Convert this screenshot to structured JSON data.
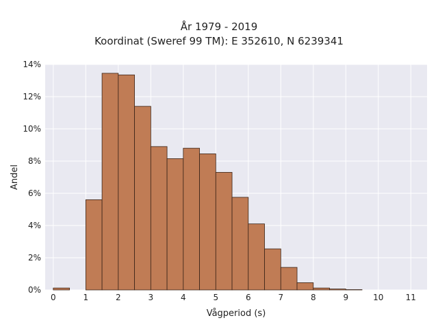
{
  "chart_data": {
    "type": "bar",
    "title_lines": [
      "År 1979 - 2019",
      "Koordinat (Sweref 99 TM): E 352610, N 6239341"
    ],
    "xlabel": "Vågperiod (s)",
    "ylabel": "Andel",
    "x_ticks": [
      "0",
      "1",
      "2",
      "3",
      "4",
      "5",
      "6",
      "7",
      "8",
      "9",
      "10",
      "11"
    ],
    "y_ticks": [
      "0%",
      "2%",
      "4%",
      "6%",
      "8%",
      "10%",
      "12%",
      "14%"
    ],
    "xlim": [
      -0.25,
      11.5
    ],
    "ylim": [
      0,
      14
    ],
    "bin_width": 0.5,
    "bins": [
      {
        "x0": 0.0,
        "value": 0.12
      },
      {
        "x0": 0.5,
        "value": 0.0
      },
      {
        "x0": 1.0,
        "value": 5.6
      },
      {
        "x0": 1.5,
        "value": 13.45
      },
      {
        "x0": 2.0,
        "value": 13.35
      },
      {
        "x0": 2.5,
        "value": 11.4
      },
      {
        "x0": 3.0,
        "value": 8.9
      },
      {
        "x0": 3.5,
        "value": 8.15
      },
      {
        "x0": 4.0,
        "value": 8.8
      },
      {
        "x0": 4.5,
        "value": 8.45
      },
      {
        "x0": 5.0,
        "value": 7.3
      },
      {
        "x0": 5.5,
        "value": 5.75
      },
      {
        "x0": 6.0,
        "value": 4.1
      },
      {
        "x0": 6.5,
        "value": 2.55
      },
      {
        "x0": 7.0,
        "value": 1.4
      },
      {
        "x0": 7.5,
        "value": 0.45
      },
      {
        "x0": 8.0,
        "value": 0.12
      },
      {
        "x0": 8.5,
        "value": 0.06
      },
      {
        "x0": 9.0,
        "value": 0.02
      }
    ],
    "bar_color": "#c07c55",
    "bar_edge": "#3a2418",
    "plot_bg": "#e9e9f1",
    "grid": true
  }
}
